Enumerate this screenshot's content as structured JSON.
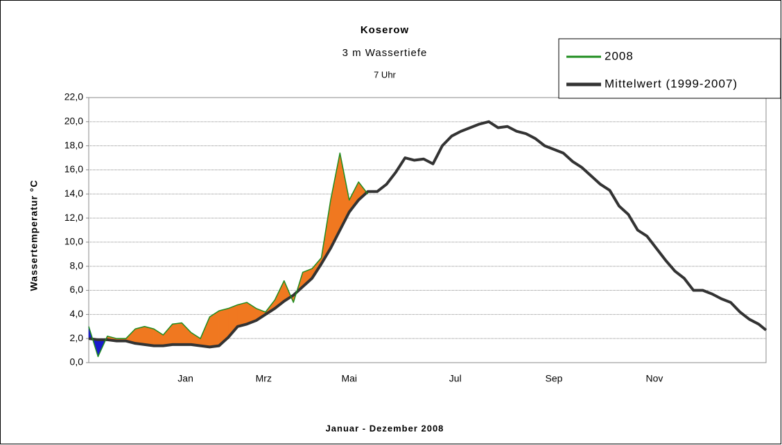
{
  "chart_data": {
    "type": "line",
    "title": "Koserow",
    "subtitle": "3 m Wassertiefe",
    "annotation": "7 Uhr",
    "y_label": "Wassertemperatur °C",
    "x_label": "Januar - Dezember 2008",
    "x": [
      0,
      5,
      10,
      15,
      20,
      25,
      30,
      35,
      40,
      45,
      50,
      55,
      60,
      65,
      70,
      75,
      80,
      85,
      90,
      95,
      100,
      105,
      110,
      115,
      120,
      125,
      130,
      135,
      140,
      145,
      150,
      155,
      160,
      165,
      170,
      175,
      180,
      185,
      190,
      195,
      200,
      205,
      210,
      215,
      220,
      225,
      230,
      235,
      240,
      245,
      250,
      255,
      260,
      265,
      270,
      275,
      280,
      285,
      290,
      295,
      300,
      305,
      310,
      315,
      320,
      325,
      330,
      335,
      340,
      345,
      350,
      355,
      360,
      364
    ],
    "xlim": [
      0,
      364
    ],
    "xticks": [
      {
        "value": 52,
        "label": "Jan"
      },
      {
        "value": 94,
        "label": "Mrz"
      },
      {
        "value": 140,
        "label": "Mai"
      },
      {
        "value": 197,
        "label": "Jul"
      },
      {
        "value": 250,
        "label": "Sep"
      },
      {
        "value": 304,
        "label": "Nov"
      }
    ],
    "ylim": [
      0,
      22
    ],
    "yticks": [
      {
        "value": 0,
        "label": "0,0"
      },
      {
        "value": 2,
        "label": "2,0"
      },
      {
        "value": 4,
        "label": "4,0"
      },
      {
        "value": 6,
        "label": "6,0"
      },
      {
        "value": 8,
        "label": "8,0"
      },
      {
        "value": 10,
        "label": "10,0"
      },
      {
        "value": 12,
        "label": "12,0"
      },
      {
        "value": 14,
        "label": "14,0"
      },
      {
        "value": 16,
        "label": "16,0"
      },
      {
        "value": 18,
        "label": "18,0"
      },
      {
        "value": 20,
        "label": "20,0"
      },
      {
        "value": 22,
        "label": "22,0"
      }
    ],
    "grid": true,
    "legend": "top-right",
    "above_color": "#f07820",
    "below_color": "#1a1acc",
    "series": [
      {
        "name": "2008",
        "color": "#1e8c1e",
        "values": [
          3.0,
          0.5,
          2.2,
          2.0,
          2.0,
          2.8,
          3.0,
          2.8,
          2.3,
          3.2,
          3.3,
          2.5,
          2.0,
          3.8,
          4.3,
          4.5,
          4.8,
          5.0,
          4.5,
          4.2,
          5.2,
          6.8,
          5.0,
          7.5,
          7.8,
          8.7,
          13.5,
          17.4,
          13.5,
          15.0,
          14.0,
          null,
          null,
          null,
          null,
          null,
          null,
          null,
          null,
          null,
          null,
          null,
          null,
          null,
          null,
          null,
          null,
          null,
          null,
          null,
          null,
          null,
          null,
          null,
          null,
          null,
          null,
          null,
          null,
          null,
          null,
          null,
          null,
          null,
          null,
          null,
          null,
          null,
          null,
          null,
          null,
          null,
          null,
          null
        ]
      },
      {
        "name": "Mittelwert (1999-2007)",
        "color": "#333333",
        "values": [
          2.0,
          1.9,
          1.9,
          1.8,
          1.8,
          1.6,
          1.5,
          1.4,
          1.4,
          1.5,
          1.5,
          1.5,
          1.4,
          1.3,
          1.4,
          2.1,
          3.0,
          3.2,
          3.5,
          4.0,
          4.5,
          5.1,
          5.6,
          6.3,
          7.0,
          8.2,
          9.5,
          11.0,
          12.5,
          13.5,
          14.2,
          14.2,
          14.8,
          15.8,
          17.0,
          16.8,
          16.9,
          16.5,
          18.0,
          18.8,
          19.2,
          19.5,
          19.8,
          20.0,
          19.5,
          19.6,
          19.2,
          19.0,
          18.6,
          18.0,
          17.7,
          17.4,
          16.7,
          16.2,
          15.5,
          14.8,
          14.3,
          13.0,
          12.3,
          11.0,
          10.5,
          9.5,
          8.5,
          7.6,
          7.0,
          6.0,
          6.0,
          5.7,
          5.3,
          5.0,
          4.2,
          3.6,
          3.2,
          2.7
        ]
      }
    ]
  }
}
